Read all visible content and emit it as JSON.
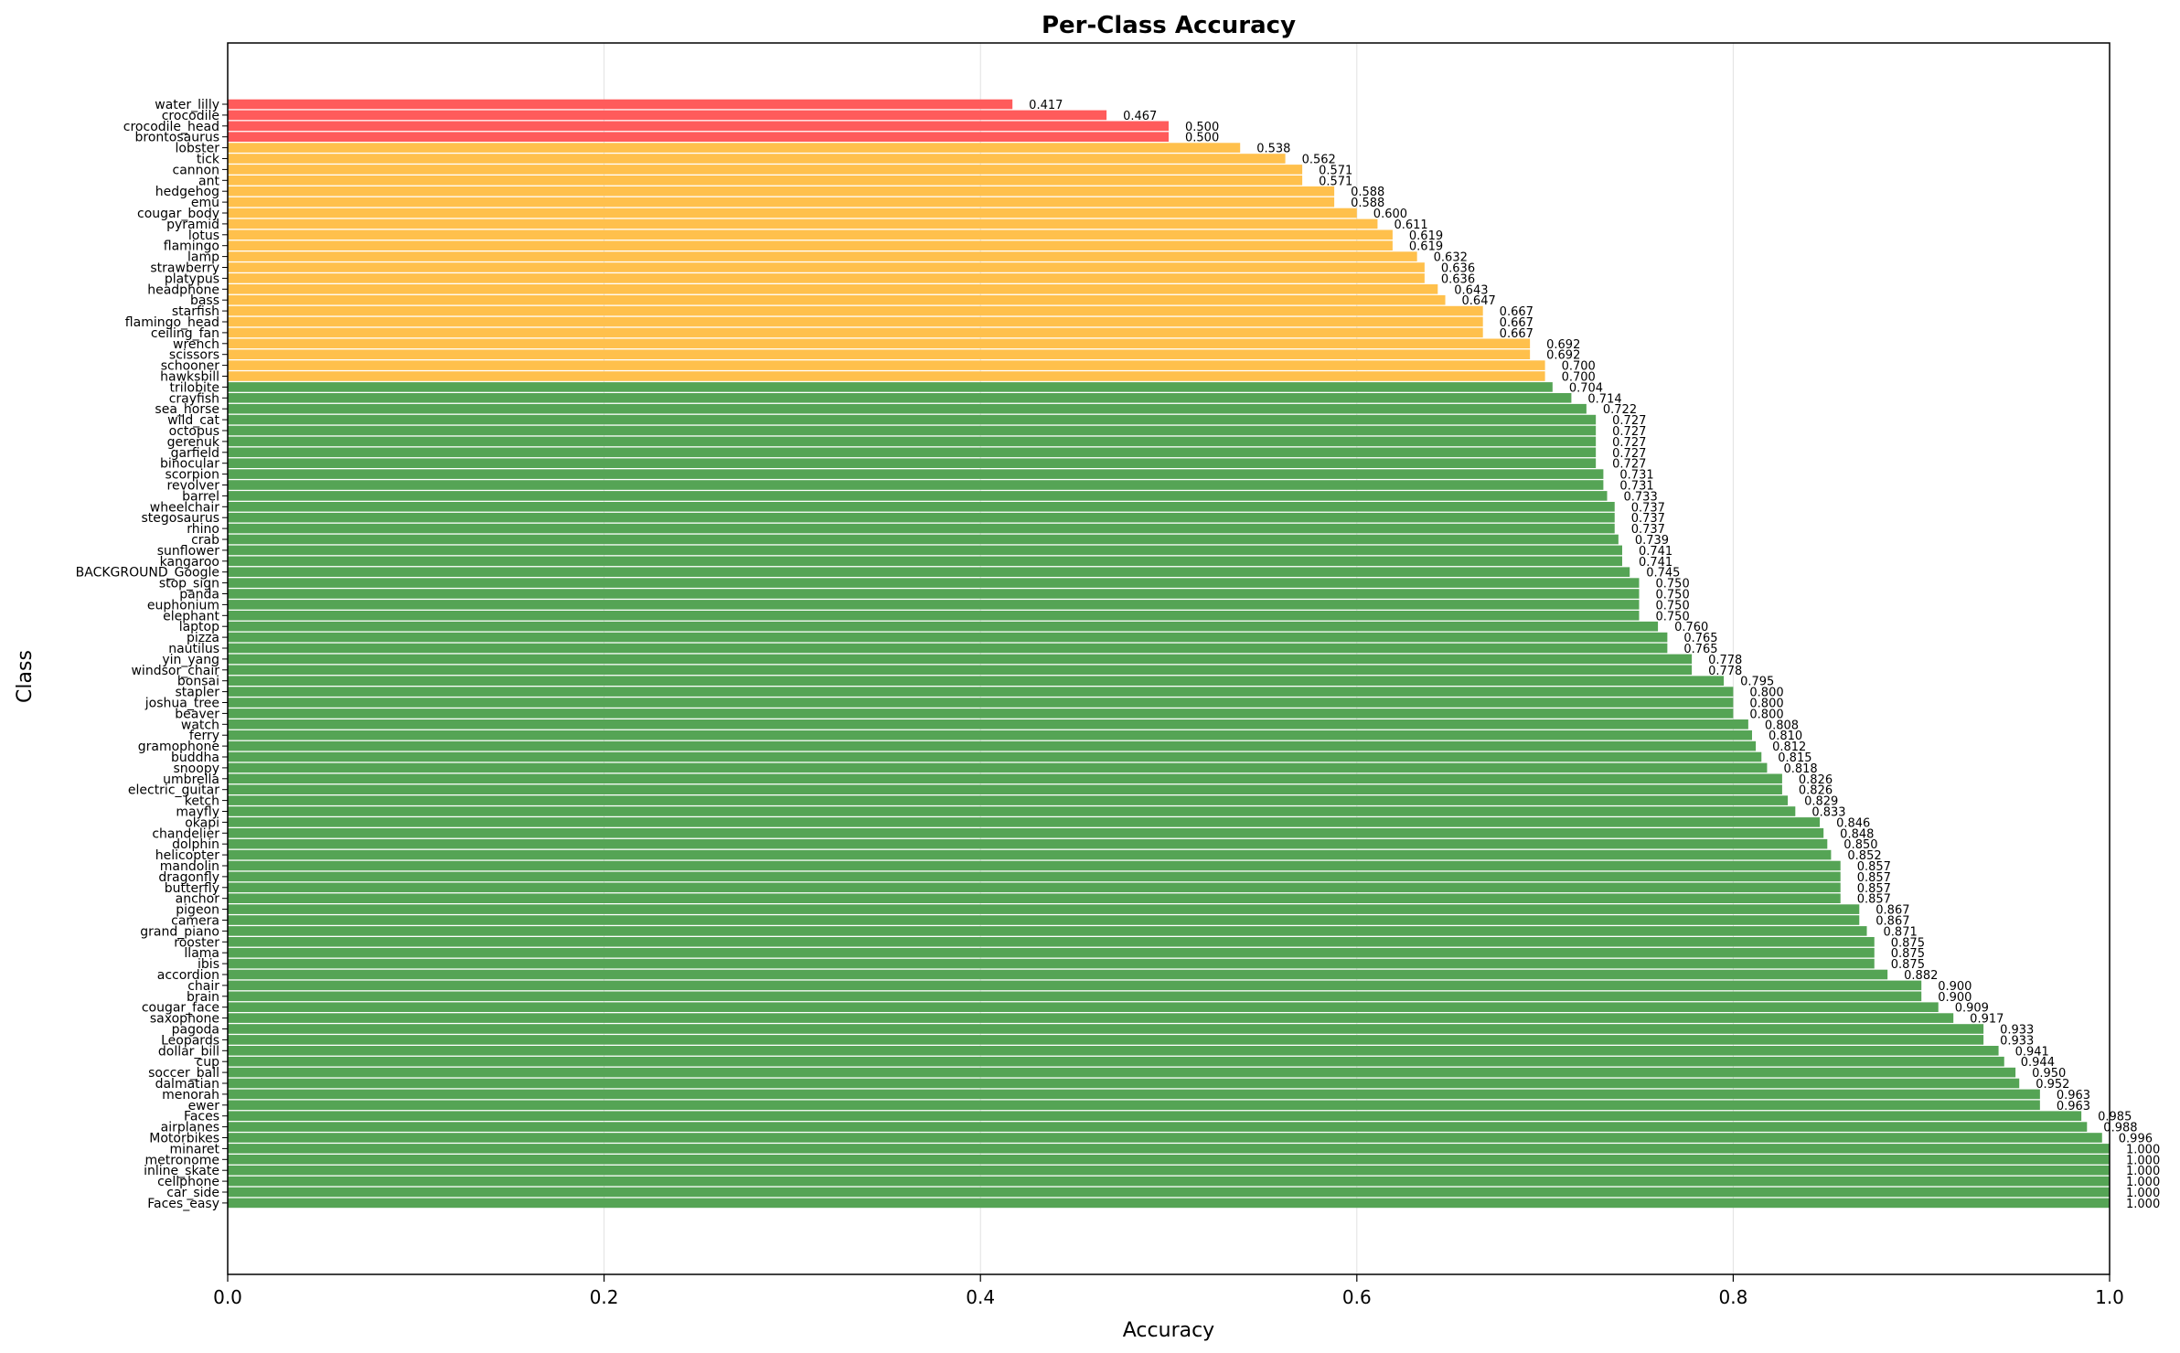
{
  "chart_data": {
    "type": "bar",
    "orientation": "horizontal",
    "title": "Per-Class Accuracy",
    "xlabel": "Accuracy",
    "ylabel": "Class",
    "xlim": [
      0,
      1
    ],
    "xticks": [
      "0.0",
      "0.2",
      "0.4",
      "0.6",
      "0.8",
      "1.0"
    ],
    "grid": "vertical, light",
    "colors": {
      "low": "#ff5b5b",
      "mid": "#ffc04c",
      "high": "#55a455"
    },
    "thresholds": {
      "low_below": 0.5001,
      "mid_below": 0.7001
    },
    "categories": [
      "water_lilly",
      "crocodile",
      "crocodile_head",
      "brontosaurus",
      "lobster",
      "tick",
      "cannon",
      "ant",
      "hedgehog",
      "emu",
      "cougar_body",
      "pyramid",
      "lotus",
      "flamingo",
      "lamp",
      "strawberry",
      "platypus",
      "headphone",
      "bass",
      "starfish",
      "flamingo_head",
      "ceiling_fan",
      "wrench",
      "scissors",
      "schooner",
      "hawksbill",
      "trilobite",
      "crayfish",
      "sea_horse",
      "wild_cat",
      "octopus",
      "gerenuk",
      "garfield",
      "binocular",
      "scorpion",
      "revolver",
      "barrel",
      "wheelchair",
      "stegosaurus",
      "rhino",
      "crab",
      "sunflower",
      "kangaroo",
      "BACKGROUND_Google",
      "stop_sign",
      "panda",
      "euphonium",
      "elephant",
      "laptop",
      "pizza",
      "nautilus",
      "yin_yang",
      "windsor_chair",
      "bonsai",
      "stapler",
      "joshua_tree",
      "beaver",
      "watch",
      "ferry",
      "gramophone",
      "buddha",
      "snoopy",
      "umbrella",
      "electric_guitar",
      "ketch",
      "mayfly",
      "okapi",
      "chandelier",
      "dolphin",
      "helicopter",
      "mandolin",
      "dragonfly",
      "butterfly",
      "anchor",
      "pigeon",
      "camera",
      "grand_piano",
      "rooster",
      "llama",
      "ibis",
      "accordion",
      "chair",
      "brain",
      "cougar_face",
      "saxophone",
      "pagoda",
      "Leopards",
      "dollar_bill",
      "cup",
      "soccer_ball",
      "dalmatian",
      "menorah",
      "ewer",
      "Faces",
      "airplanes",
      "Motorbikes",
      "minaret",
      "metronome",
      "inline_skate",
      "cellphone",
      "car_side",
      "Faces_easy"
    ],
    "values": [
      0.417,
      0.467,
      0.5,
      0.5,
      0.538,
      0.562,
      0.571,
      0.571,
      0.588,
      0.588,
      0.6,
      0.611,
      0.619,
      0.619,
      0.632,
      0.636,
      0.636,
      0.643,
      0.647,
      0.667,
      0.667,
      0.667,
      0.692,
      0.692,
      0.7,
      0.7,
      0.704,
      0.714,
      0.722,
      0.727,
      0.727,
      0.727,
      0.727,
      0.727,
      0.731,
      0.731,
      0.733,
      0.737,
      0.737,
      0.737,
      0.739,
      0.741,
      0.741,
      0.745,
      0.75,
      0.75,
      0.75,
      0.75,
      0.76,
      0.765,
      0.765,
      0.778,
      0.778,
      0.795,
      0.8,
      0.8,
      0.8,
      0.808,
      0.81,
      0.812,
      0.815,
      0.818,
      0.826,
      0.826,
      0.829,
      0.833,
      0.846,
      0.848,
      0.85,
      0.852,
      0.857,
      0.857,
      0.857,
      0.857,
      0.867,
      0.867,
      0.871,
      0.875,
      0.875,
      0.875,
      0.882,
      0.9,
      0.9,
      0.909,
      0.917,
      0.933,
      0.933,
      0.941,
      0.944,
      0.95,
      0.952,
      0.963,
      0.963,
      0.985,
      0.988,
      0.996,
      1.0,
      1.0,
      1.0,
      1.0,
      1.0,
      1.0
    ],
    "value_labels": [
      "0.417",
      "0.467",
      "0.500",
      "0.500",
      "0.538",
      "0.562",
      "0.571",
      "0.571",
      "0.588",
      "0.588",
      "0.600",
      "0.611",
      "0.619",
      "0.619",
      "0.632",
      "0.636",
      "0.636",
      "0.643",
      "0.647",
      "0.667",
      "0.667",
      "0.667",
      "0.692",
      "0.692",
      "0.700",
      "0.700",
      "0.704",
      "0.714",
      "0.722",
      "0.727",
      "0.727",
      "0.727",
      "0.727",
      "0.727",
      "0.731",
      "0.731",
      "0.733",
      "0.737",
      "0.737",
      "0.737",
      "0.739",
      "0.741",
      "0.741",
      "0.745",
      "0.750",
      "0.750",
      "0.750",
      "0.750",
      "0.760",
      "0.765",
      "0.765",
      "0.778",
      "0.778",
      "0.795",
      "0.800",
      "0.800",
      "0.800",
      "0.808",
      "0.810",
      "0.812",
      "0.815",
      "0.818",
      "0.826",
      "0.826",
      "0.829",
      "0.833",
      "0.846",
      "0.848",
      "0.850",
      "0.852",
      "0.857",
      "0.857",
      "0.857",
      "0.857",
      "0.867",
      "0.867",
      "0.871",
      "0.875",
      "0.875",
      "0.875",
      "0.882",
      "0.900",
      "0.900",
      "0.909",
      "0.917",
      "0.933",
      "0.933",
      "0.941",
      "0.944",
      "0.950",
      "0.952",
      "0.963",
      "0.963",
      "0.985",
      "0.988",
      "0.996",
      "1.000",
      "1.000",
      "1.000",
      "1.000",
      "1.000",
      "1.000"
    ]
  }
}
